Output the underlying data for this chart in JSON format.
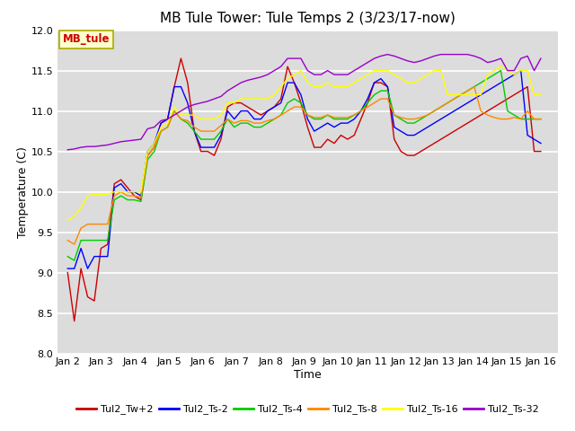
{
  "title": "MB Tule Tower: Tule Temps 2 (3/23/17-now)",
  "xlabel": "Time",
  "ylabel": "Temperature (C)",
  "ylim": [
    8.0,
    12.0
  ],
  "yticks": [
    8.0,
    8.5,
    9.0,
    9.5,
    10.0,
    10.5,
    11.0,
    11.5,
    12.0
  ],
  "x_labels": [
    "Jan 2",
    "Jan 3",
    "Jan 4",
    "Jan 5",
    "Jan 6",
    "Jan 7",
    "Jan 8",
    "Jan 9",
    "Jan 10",
    "Jan 11",
    "Jan 12",
    "Jan 13",
    "Jan 14",
    "Jan 15",
    "Jan 16"
  ],
  "legend_label": "MB_tule",
  "series": {
    "Tul2_Tw+2": {
      "color": "#cc0000",
      "data": [
        9.0,
        8.4,
        9.05,
        8.7,
        8.65,
        9.3,
        9.35,
        10.1,
        10.15,
        10.05,
        9.95,
        9.9,
        10.45,
        10.55,
        10.85,
        10.9,
        11.3,
        11.65,
        11.35,
        10.75,
        10.5,
        10.5,
        10.45,
        10.65,
        11.05,
        11.1,
        11.1,
        11.05,
        11.0,
        10.95,
        11.0,
        11.05,
        11.15,
        11.55,
        11.35,
        11.1,
        10.8,
        10.55,
        10.55,
        10.65,
        10.6,
        10.7,
        10.65,
        10.7,
        10.9,
        11.1,
        11.35,
        11.35,
        11.3,
        10.65,
        10.5,
        10.45,
        10.45,
        10.5,
        10.55,
        10.6,
        10.65,
        10.7,
        10.75,
        10.8,
        10.85,
        10.9,
        10.95,
        11.0,
        11.05,
        11.1,
        11.15,
        11.2,
        11.25,
        11.3,
        10.5,
        10.5
      ]
    },
    "Tul2_Ts-2": {
      "color": "#0000ff",
      "data": [
        9.05,
        9.05,
        9.3,
        9.05,
        9.2,
        9.2,
        9.2,
        10.05,
        10.1,
        10.0,
        10.0,
        9.95,
        10.5,
        10.6,
        10.85,
        10.9,
        11.3,
        11.3,
        11.1,
        10.75,
        10.55,
        10.55,
        10.55,
        10.7,
        11.0,
        10.9,
        11.0,
        11.0,
        10.9,
        10.9,
        11.0,
        11.05,
        11.1,
        11.35,
        11.35,
        11.2,
        10.9,
        10.75,
        10.8,
        10.85,
        10.8,
        10.85,
        10.85,
        10.9,
        11.0,
        11.15,
        11.35,
        11.4,
        11.3,
        10.8,
        10.75,
        10.7,
        10.7,
        10.75,
        10.8,
        10.85,
        10.9,
        10.95,
        11.0,
        11.05,
        11.1,
        11.15,
        11.2,
        11.25,
        11.3,
        11.35,
        11.4,
        11.45,
        11.5,
        10.7,
        10.65,
        10.6
      ]
    },
    "Tul2_Ts-4": {
      "color": "#00cc00",
      "data": [
        9.2,
        9.15,
        9.4,
        9.4,
        9.4,
        9.4,
        9.4,
        9.9,
        9.95,
        9.9,
        9.9,
        9.88,
        10.4,
        10.5,
        10.75,
        10.8,
        11.0,
        10.9,
        10.85,
        10.75,
        10.65,
        10.65,
        10.65,
        10.75,
        10.9,
        10.8,
        10.85,
        10.85,
        10.8,
        10.8,
        10.85,
        10.9,
        10.95,
        11.1,
        11.15,
        11.1,
        10.95,
        10.9,
        10.9,
        10.95,
        10.9,
        10.9,
        10.9,
        10.95,
        11.0,
        11.1,
        11.2,
        11.25,
        11.25,
        10.95,
        10.9,
        10.85,
        10.85,
        10.9,
        10.95,
        11.0,
        11.05,
        11.1,
        11.15,
        11.2,
        11.25,
        11.3,
        11.35,
        11.4,
        11.45,
        11.5,
        11.0,
        10.95,
        10.9,
        10.9,
        10.9,
        10.9
      ]
    },
    "Tul2_Ts-8": {
      "color": "#ff8800",
      "data": [
        9.4,
        9.35,
        9.55,
        9.6,
        9.6,
        9.6,
        9.6,
        9.95,
        10.0,
        9.95,
        9.95,
        9.93,
        10.45,
        10.55,
        10.75,
        10.8,
        11.0,
        10.9,
        10.88,
        10.8,
        10.75,
        10.75,
        10.75,
        10.82,
        10.9,
        10.85,
        10.88,
        10.88,
        10.85,
        10.85,
        10.88,
        10.9,
        10.95,
        11.0,
        11.05,
        11.05,
        10.95,
        10.92,
        10.92,
        10.95,
        10.92,
        10.92,
        10.92,
        10.95,
        11.0,
        11.05,
        11.1,
        11.15,
        11.15,
        10.95,
        10.92,
        10.9,
        10.9,
        10.92,
        10.95,
        11.0,
        11.05,
        11.1,
        11.15,
        11.2,
        11.25,
        11.3,
        11.0,
        10.95,
        10.92,
        10.9,
        10.9,
        10.92,
        10.9,
        11.0,
        10.9,
        10.9
      ]
    },
    "Tul2_Ts-16": {
      "color": "#ffff00",
      "data": [
        9.65,
        9.7,
        9.8,
        9.95,
        9.97,
        9.97,
        9.97,
        10.0,
        10.0,
        10.0,
        10.0,
        10.0,
        10.5,
        10.6,
        10.8,
        10.85,
        11.05,
        10.95,
        10.95,
        10.95,
        10.9,
        10.9,
        10.9,
        10.95,
        11.1,
        11.1,
        11.15,
        11.15,
        11.15,
        11.15,
        11.15,
        11.2,
        11.3,
        11.4,
        11.45,
        11.5,
        11.35,
        11.3,
        11.3,
        11.35,
        11.3,
        11.3,
        11.3,
        11.35,
        11.4,
        11.45,
        11.5,
        11.5,
        11.5,
        11.45,
        11.4,
        11.35,
        11.35,
        11.4,
        11.45,
        11.5,
        11.5,
        11.2,
        11.2,
        11.2,
        11.2,
        11.2,
        11.2,
        11.45,
        11.5,
        11.55,
        11.5,
        11.45,
        11.5,
        11.5,
        11.2,
        11.2
      ]
    },
    "Tul2_Ts-32": {
      "color": "#9900cc",
      "data": [
        10.52,
        10.53,
        10.55,
        10.56,
        10.56,
        10.57,
        10.58,
        10.6,
        10.62,
        10.63,
        10.64,
        10.65,
        10.78,
        10.8,
        10.88,
        10.9,
        10.95,
        11.0,
        11.05,
        11.08,
        11.1,
        11.12,
        11.15,
        11.18,
        11.25,
        11.3,
        11.35,
        11.38,
        11.4,
        11.42,
        11.45,
        11.5,
        11.55,
        11.65,
        11.65,
        11.65,
        11.5,
        11.45,
        11.45,
        11.5,
        11.45,
        11.45,
        11.45,
        11.5,
        11.55,
        11.6,
        11.65,
        11.68,
        11.7,
        11.68,
        11.65,
        11.62,
        11.6,
        11.62,
        11.65,
        11.68,
        11.7,
        11.7,
        11.7,
        11.7,
        11.7,
        11.68,
        11.65,
        11.6,
        11.62,
        11.65,
        11.5,
        11.5,
        11.65,
        11.68,
        11.5,
        11.65
      ]
    }
  },
  "fig_bg_color": "#ffffff",
  "plot_bg_color": "#dcdcdc",
  "grid_color": "#ffffff",
  "title_fontsize": 11,
  "axis_label_fontsize": 9,
  "tick_fontsize": 8,
  "legend_box_facecolor": "#ffffcc",
  "legend_box_edgecolor": "#aaaa00",
  "legend_text_color": "#cc0000",
  "figsize": [
    6.4,
    4.8
  ],
  "dpi": 100
}
